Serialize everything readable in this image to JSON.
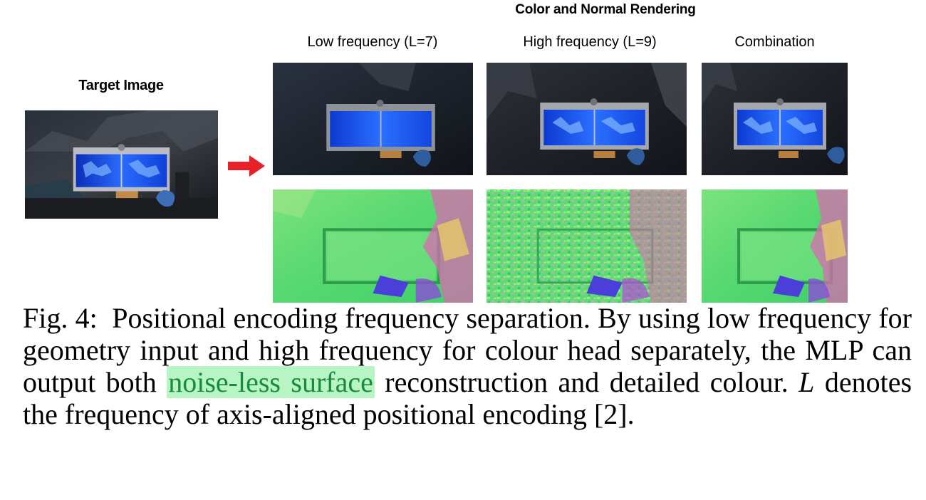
{
  "figure": {
    "section_title": "Color and Normal Rendering",
    "target_label": "Target Image",
    "columns": [
      {
        "label": "Low frequency (L=7)"
      },
      {
        "label": "High frequency (L=9)"
      },
      {
        "label": "Combination"
      }
    ]
  },
  "caption": {
    "fig_label": "Fig. 4:",
    "text_1": "Positional encoding frequency separation. By using low frequency for geometry input and high frequency for colour head separately, the MLP can output both",
    "highlight": "noise-less surface",
    "text_2": "reconstruction and detailed colour.",
    "symbol": "L",
    "text_3": "denotes the frequency of axis-aligned positional encoding [2]."
  },
  "colors": {
    "arrow": "#e8202a",
    "highlight_bg": "#b7f5c5",
    "highlight_text": "#1a8a3b",
    "screen": "#1f5bff",
    "normal_green": "#4fe070"
  }
}
